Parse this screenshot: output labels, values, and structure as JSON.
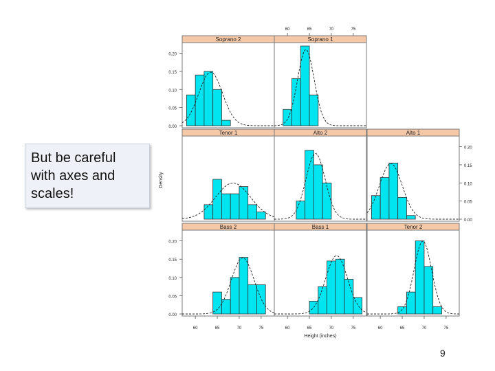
{
  "callout": {
    "text": "But be careful with axes and scales!"
  },
  "slide_number": "9",
  "chart_data": {
    "type": "histogram-trellis",
    "title": "",
    "xlabel": "Height (inches)",
    "ylabel": "Density",
    "xlim": [
      57,
      78
    ],
    "ylim": [
      0,
      0.22
    ],
    "x_ticks": [
      60,
      65,
      70,
      75
    ],
    "y_ticks": [
      0.0,
      0.05,
      0.1,
      0.15,
      0.2
    ],
    "y_tick_labels": [
      "0.00",
      "0.05",
      "0.10",
      "0.15",
      "0.20"
    ],
    "panels": [
      {
        "name": "Soprano 2",
        "bins": [
          {
            "x0": 58,
            "x1": 60,
            "density": 0.085
          },
          {
            "x0": 60,
            "x1": 62,
            "density": 0.14
          },
          {
            "x0": 62,
            "x1": 64,
            "density": 0.15
          },
          {
            "x0": 64,
            "x1": 66,
            "density": 0.1
          },
          {
            "x0": 66,
            "x1": 68,
            "density": 0.015
          }
        ],
        "normal": {
          "mean": 63.5,
          "sd": 2.7
        }
      },
      {
        "name": "Soprano 1",
        "bins": [
          {
            "x0": 59,
            "x1": 61,
            "density": 0.045
          },
          {
            "x0": 61,
            "x1": 63,
            "density": 0.13
          },
          {
            "x0": 63,
            "x1": 65,
            "density": 0.22
          },
          {
            "x0": 65,
            "x1": 67,
            "density": 0.085
          }
        ],
        "normal": {
          "mean": 64.2,
          "sd": 1.9
        }
      },
      {
        "name": "Tenor 1",
        "bins": [
          {
            "x0": 62,
            "x1": 64,
            "density": 0.04
          },
          {
            "x0": 64,
            "x1": 66,
            "density": 0.11
          },
          {
            "x0": 66,
            "x1": 68,
            "density": 0.07
          },
          {
            "x0": 68,
            "x1": 70,
            "density": 0.07
          },
          {
            "x0": 70,
            "x1": 72,
            "density": 0.09
          },
          {
            "x0": 72,
            "x1": 74,
            "density": 0.04
          },
          {
            "x0": 74,
            "x1": 76,
            "density": 0.02
          }
        ],
        "normal": {
          "mean": 68.6,
          "sd": 4.0
        }
      },
      {
        "name": "Alto 2",
        "bins": [
          {
            "x0": 62,
            "x1": 64,
            "density": 0.05
          },
          {
            "x0": 64,
            "x1": 66,
            "density": 0.19
          },
          {
            "x0": 66,
            "x1": 68,
            "density": 0.15
          },
          {
            "x0": 68,
            "x1": 70,
            "density": 0.1
          }
        ],
        "normal": {
          "mean": 66.4,
          "sd": 2.2
        }
      },
      {
        "name": "Alto 1",
        "bins": [
          {
            "x0": 58,
            "x1": 60,
            "density": 0.065
          },
          {
            "x0": 60,
            "x1": 62,
            "density": 0.115
          },
          {
            "x0": 62,
            "x1": 64,
            "density": 0.155
          },
          {
            "x0": 64,
            "x1": 66,
            "density": 0.06
          },
          {
            "x0": 66,
            "x1": 68,
            "density": 0.01
          }
        ],
        "normal": {
          "mean": 62.4,
          "sd": 2.6
        }
      },
      {
        "name": "Bass 2",
        "bins": [
          {
            "x0": 64,
            "x1": 66,
            "density": 0.06
          },
          {
            "x0": 66,
            "x1": 68,
            "density": 0.04
          },
          {
            "x0": 68,
            "x1": 70,
            "density": 0.1
          },
          {
            "x0": 70,
            "x1": 72,
            "density": 0.155
          },
          {
            "x0": 72,
            "x1": 74,
            "density": 0.08
          },
          {
            "x0": 74,
            "x1": 76,
            "density": 0.08
          }
        ],
        "normal": {
          "mean": 70.8,
          "sd": 2.6
        }
      },
      {
        "name": "Bass 1",
        "bins": [
          {
            "x0": 65,
            "x1": 67,
            "density": 0.035
          },
          {
            "x0": 67,
            "x1": 69,
            "density": 0.075
          },
          {
            "x0": 69,
            "x1": 71,
            "density": 0.145
          },
          {
            "x0": 71,
            "x1": 73,
            "density": 0.15
          },
          {
            "x0": 73,
            "x1": 75,
            "density": 0.095
          },
          {
            "x0": 75,
            "x1": 77,
            "density": 0.045
          }
        ],
        "normal": {
          "mean": 71.2,
          "sd": 2.5
        }
      },
      {
        "name": "Tenor 2",
        "bins": [
          {
            "x0": 64,
            "x1": 66,
            "density": 0.02
          },
          {
            "x0": 66,
            "x1": 68,
            "density": 0.06
          },
          {
            "x0": 68,
            "x1": 70,
            "density": 0.2
          },
          {
            "x0": 70,
            "x1": 72,
            "density": 0.13
          },
          {
            "x0": 72,
            "x1": 74,
            "density": 0.02
          }
        ],
        "normal": {
          "mean": 69.7,
          "sd": 2.0
        }
      }
    ]
  }
}
